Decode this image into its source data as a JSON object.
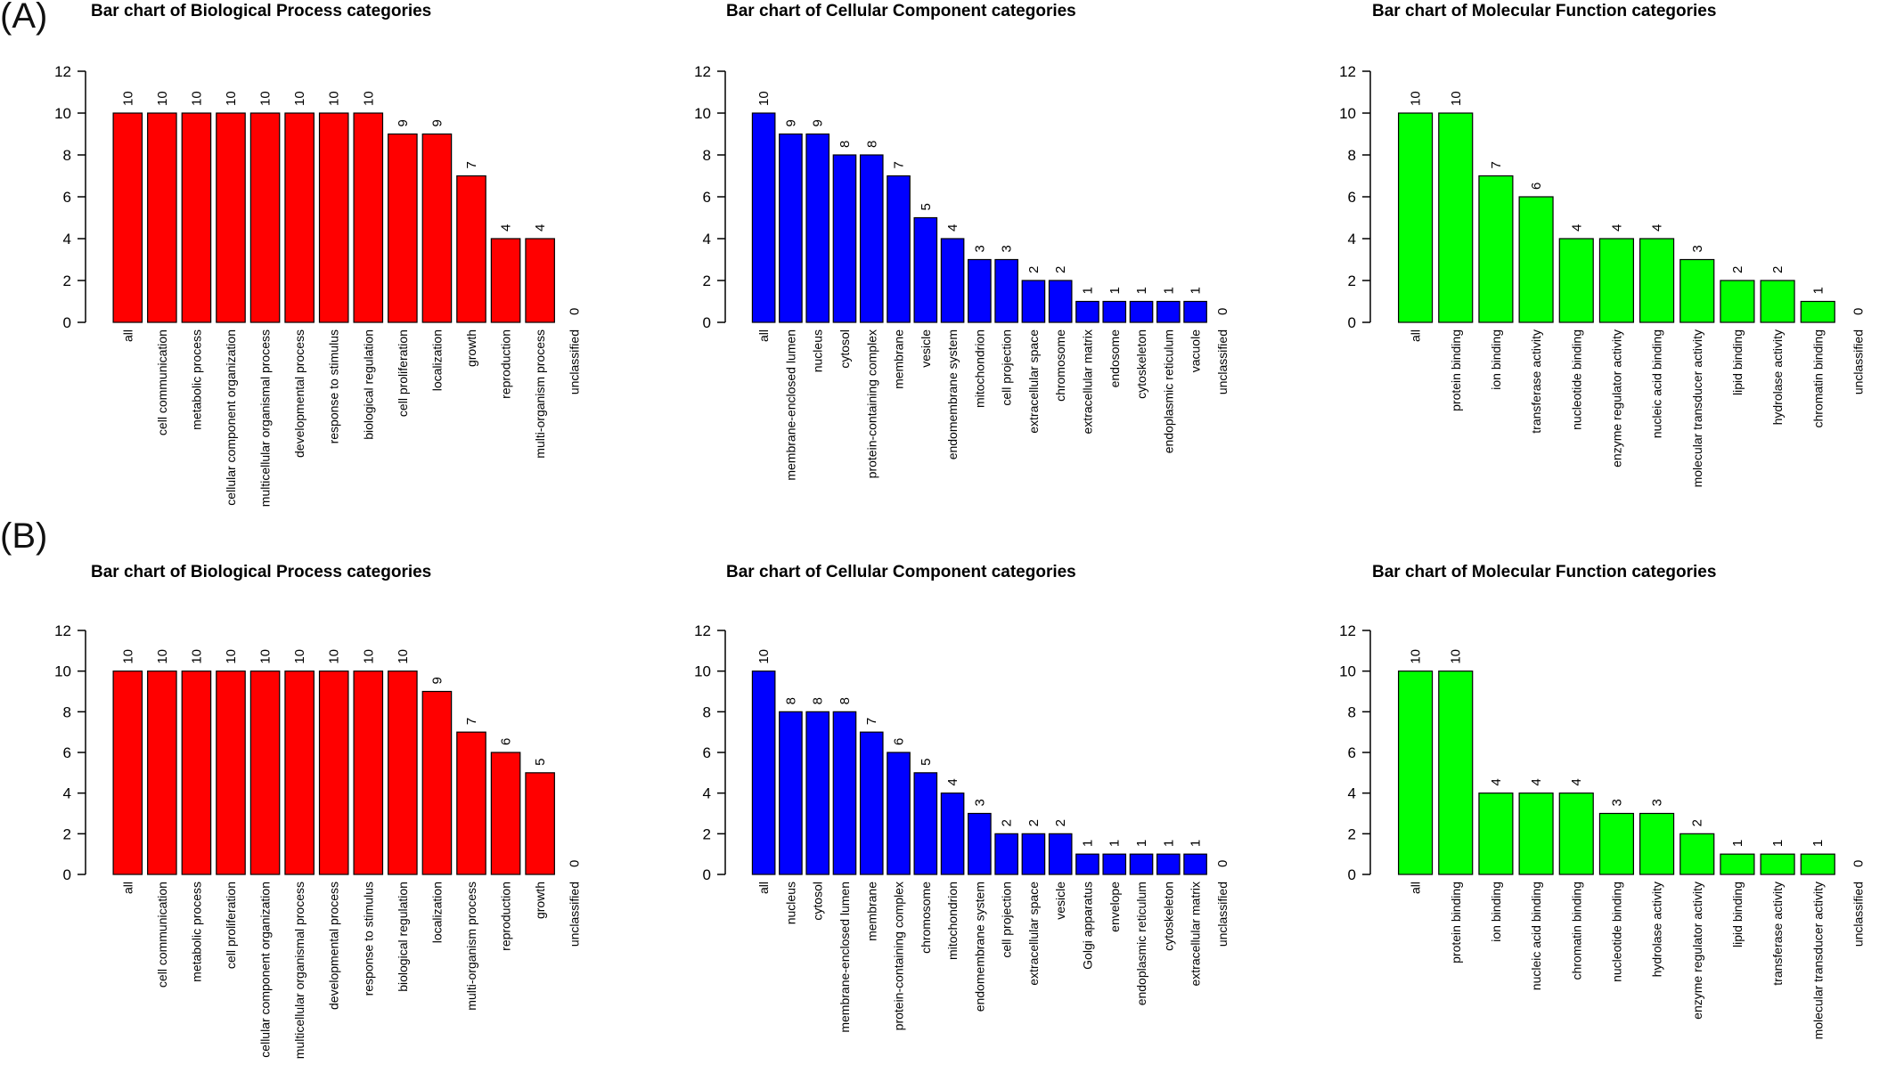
{
  "panels": [
    {
      "label": "(A)"
    },
    {
      "label": "(B)"
    }
  ],
  "chart_data": [
    {
      "type": "bar",
      "panel": "(A)",
      "title": "Bar chart of Biological Process categories",
      "color": "#ff0000",
      "ylim": [
        0,
        12
      ],
      "yticks": [
        0,
        2,
        4,
        6,
        8,
        10,
        12
      ],
      "categories": [
        "all",
        "cell communication",
        "metabolic process",
        "cellular component organization",
        "multicellular organismal process",
        "developmental process",
        "response to stimulus",
        "biological regulation",
        "cell proliferation",
        "localization",
        "growth",
        "reproduction",
        "multi-organism process",
        "unclassified"
      ],
      "values": [
        10,
        10,
        10,
        10,
        10,
        10,
        10,
        10,
        9,
        9,
        7,
        4,
        4,
        0
      ]
    },
    {
      "type": "bar",
      "panel": "(A)",
      "title": "Bar chart of Cellular Component categories",
      "color": "#0000ff",
      "ylim": [
        0,
        12
      ],
      "yticks": [
        0,
        2,
        4,
        6,
        8,
        10,
        12
      ],
      "categories": [
        "all",
        "membrane-enclosed lumen",
        "nucleus",
        "cytosol",
        "protein-containing complex",
        "membrane",
        "vesicle",
        "endomembrane system",
        "mitochondrion",
        "cell projection",
        "extracellular space",
        "chromosome",
        "extracellular matrix",
        "endosome",
        "cytoskeleton",
        "endoplasmic reticulum",
        "vacuole",
        "unclassified"
      ],
      "values": [
        10,
        9,
        9,
        8,
        8,
        7,
        5,
        4,
        3,
        3,
        2,
        2,
        1,
        1,
        1,
        1,
        1,
        0
      ]
    },
    {
      "type": "bar",
      "panel": "(A)",
      "title": "Bar chart of Molecular Function categories",
      "color": "#00ff00",
      "ylim": [
        0,
        12
      ],
      "yticks": [
        0,
        2,
        4,
        6,
        8,
        10,
        12
      ],
      "categories": [
        "all",
        "protein binding",
        "ion binding",
        "transferase activity",
        "nucleotide binding",
        "enzyme regulator activity",
        "nucleic acid binding",
        "molecular transducer activity",
        "lipid binding",
        "hydrolase activity",
        "chromatin binding",
        "unclassified"
      ],
      "values": [
        10,
        10,
        7,
        6,
        4,
        4,
        4,
        3,
        2,
        2,
        1,
        0
      ]
    },
    {
      "type": "bar",
      "panel": "(B)",
      "title": "Bar chart of Biological Process categories",
      "color": "#ff0000",
      "ylim": [
        0,
        12
      ],
      "yticks": [
        0,
        2,
        4,
        6,
        8,
        10,
        12
      ],
      "categories": [
        "all",
        "cell communication",
        "metabolic process",
        "cell proliferation",
        "cellular component organization",
        "multicellular organismal process",
        "developmental process",
        "response to stimulus",
        "biological regulation",
        "localization",
        "multi-organism process",
        "reproduction",
        "growth",
        "unclassified"
      ],
      "values": [
        10,
        10,
        10,
        10,
        10,
        10,
        10,
        10,
        10,
        9,
        7,
        6,
        5,
        0
      ]
    },
    {
      "type": "bar",
      "panel": "(B)",
      "title": "Bar chart of Cellular Component categories",
      "color": "#0000ff",
      "ylim": [
        0,
        12
      ],
      "yticks": [
        0,
        2,
        4,
        6,
        8,
        10,
        12
      ],
      "categories": [
        "all",
        "nucleus",
        "cytosol",
        "membrane-enclosed lumen",
        "membrane",
        "protein-containing complex",
        "chromosome",
        "mitochondrion",
        "endomembrane system",
        "cell projection",
        "extracellular space",
        "vesicle",
        "Golgi apparatus",
        "envelope",
        "endoplasmic reticulum",
        "cytoskeleton",
        "extracellular matrix",
        "unclassified"
      ],
      "values": [
        10,
        8,
        8,
        8,
        7,
        6,
        5,
        4,
        3,
        2,
        2,
        2,
        1,
        1,
        1,
        1,
        1,
        0
      ]
    },
    {
      "type": "bar",
      "panel": "(B)",
      "title": "Bar chart of Molecular Function categories",
      "color": "#00ff00",
      "ylim": [
        0,
        12
      ],
      "yticks": [
        0,
        2,
        4,
        6,
        8,
        10,
        12
      ],
      "categories": [
        "all",
        "protein binding",
        "ion binding",
        "nucleic acid binding",
        "chromatin binding",
        "nucleotide binding",
        "hydrolase activity",
        "enzyme regulator activity",
        "lipid binding",
        "transferase activity",
        "molecular transducer activity",
        "unclassified"
      ],
      "values": [
        10,
        10,
        4,
        4,
        4,
        3,
        3,
        2,
        1,
        1,
        1,
        0
      ]
    }
  ]
}
